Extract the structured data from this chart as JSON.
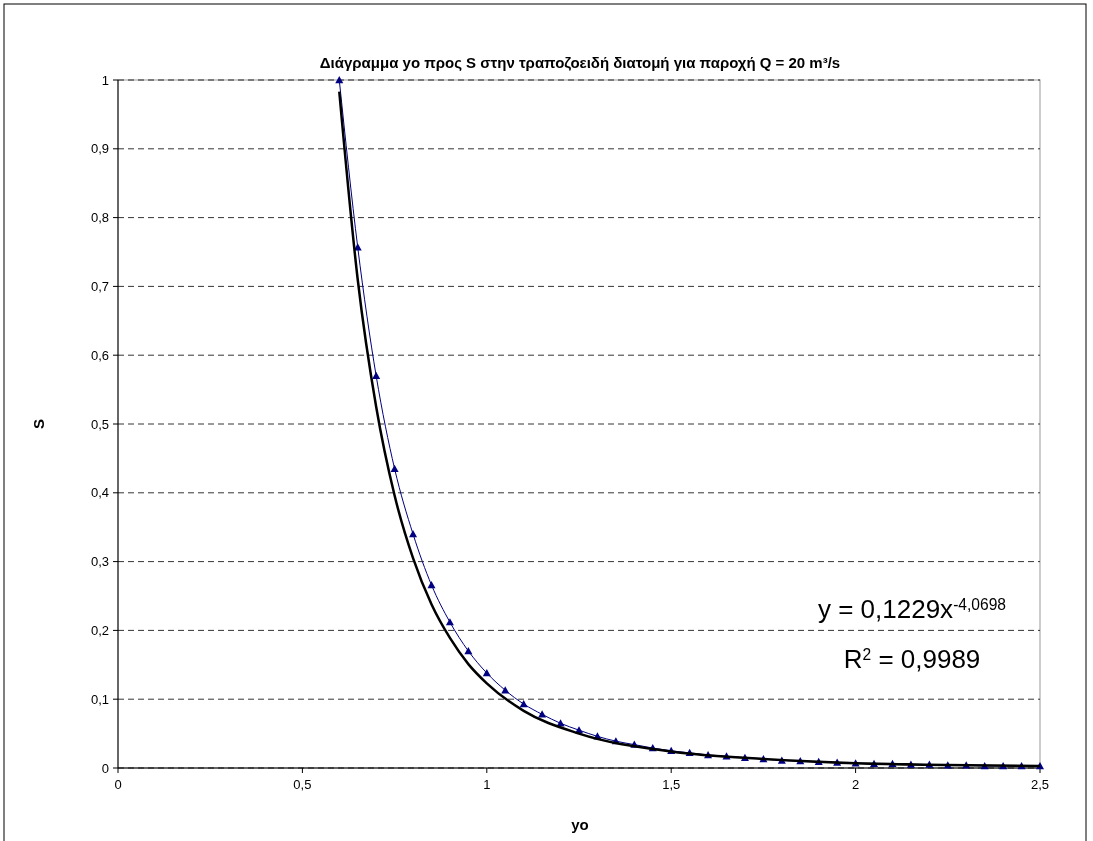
{
  "chart_data": {
    "type": "line",
    "title": "Διάγραμμα  yo  προς S  στην τραποζοειδή  διατομή για παροχή Q = 20 m³/s",
    "xlabel": "yo",
    "ylabel": "S",
    "x": [
      0.6,
      0.65,
      0.7,
      0.75,
      0.8,
      0.85,
      0.9,
      0.95,
      1.0,
      1.05,
      1.1,
      1.15,
      1.2,
      1.25,
      1.3,
      1.35,
      1.4,
      1.45,
      1.5,
      1.55,
      1.6,
      1.65,
      1.7,
      1.75,
      1.8,
      1.85,
      1.9,
      1.95,
      2.0,
      2.05,
      2.1,
      2.15,
      2.2,
      2.25,
      2.3,
      2.35,
      2.4,
      2.45,
      2.5
    ],
    "series": [
      {
        "color": "#000080",
        "marker": "triangle",
        "line_style": "solid",
        "values": [
          1.0,
          0.757,
          0.57,
          0.435,
          0.34,
          0.266,
          0.212,
          0.17,
          0.138,
          0.113,
          0.093,
          0.078,
          0.065,
          0.055,
          0.046,
          0.039,
          0.034,
          0.029,
          0.025,
          0.022,
          0.019,
          0.017,
          0.015,
          0.013,
          0.011,
          0.01,
          0.009,
          0.008,
          0.007,
          0.006,
          0.006,
          0.005,
          0.005,
          0.004,
          0.004,
          0.003,
          0.003,
          0.003,
          0.003
        ]
      },
      {
        "color": "#000000",
        "marker": "none",
        "line_style": "solid",
        "x": [
          0.6,
          0.65,
          0.7,
          0.75,
          0.8,
          0.85,
          0.9,
          0.95,
          1.0,
          1.1,
          1.25,
          1.5,
          1.75,
          2.0,
          2.5
        ],
        "values": [
          0.983,
          0.71,
          0.525,
          0.396,
          0.305,
          0.238,
          0.189,
          0.151,
          0.123,
          0.083,
          0.05,
          0.024,
          0.013,
          0.007,
          0.003
        ]
      }
    ],
    "xlim": [
      0,
      2.5
    ],
    "xticks": [
      0,
      {
        "value": 0.5,
        "label": "0,5"
      },
      1,
      {
        "value": 1.5,
        "label": "1,5"
      },
      2,
      {
        "value": 2.5,
        "label": "2,5"
      }
    ],
    "ylim": [
      0,
      1
    ],
    "yticks": [
      0,
      {
        "value": 0.1,
        "label": "0,1"
      },
      {
        "value": 0.2,
        "label": "0,2"
      },
      {
        "value": 0.3,
        "label": "0,3"
      },
      {
        "value": 0.4,
        "label": "0,4"
      },
      {
        "value": 0.5,
        "label": "0,5"
      },
      {
        "value": 0.6,
        "label": "0,6"
      },
      {
        "value": 0.7,
        "label": "0,7"
      },
      {
        "value": 0.8,
        "label": "0,8"
      },
      {
        "value": 0.9,
        "label": "0,9"
      },
      1
    ],
    "grid": "y",
    "annotations": [
      "y = 0,1229x$^{-4,0698}$",
      "R$^{2}$ = 0,9989"
    ]
  }
}
